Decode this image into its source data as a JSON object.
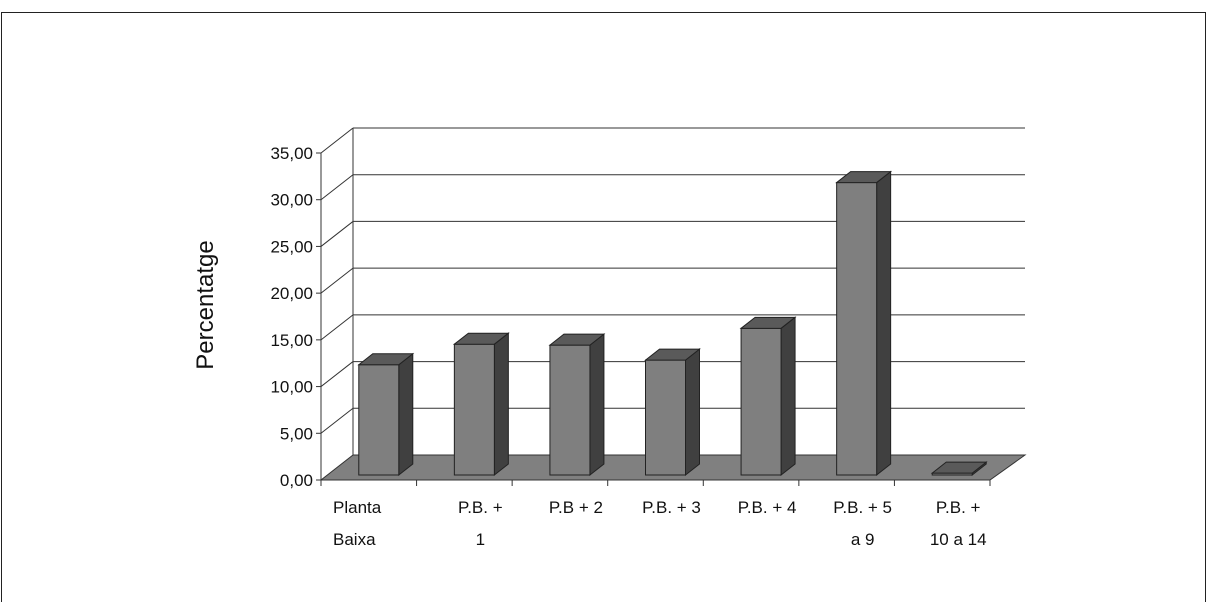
{
  "chart_data": {
    "type": "bar",
    "style": "3d-column",
    "ylabel": "Percentatge",
    "xlabel": "",
    "ylim": [
      0,
      35
    ],
    "yticks": [
      "0,00",
      "5,00",
      "10,00",
      "15,00",
      "20,00",
      "25,00",
      "30,00",
      "35,00"
    ],
    "categories": [
      [
        "Planta",
        "Baixa"
      ],
      [
        "P.B. +",
        "1"
      ],
      [
        "P.B + 2"
      ],
      [
        "P.B. + 3"
      ],
      [
        "P.B. + 4"
      ],
      [
        "P.B. + 5",
        "a 9"
      ],
      [
        "P.B. +",
        "10 a 14"
      ]
    ],
    "values": [
      11.8,
      14.0,
      13.9,
      12.3,
      15.7,
      31.3,
      0.2
    ],
    "grid": true,
    "legend": "none",
    "colors": {
      "bar_front": "#7f7f7f",
      "bar_top": "#5a5a5a",
      "bar_side": "#404040",
      "floor": "#808080"
    }
  }
}
